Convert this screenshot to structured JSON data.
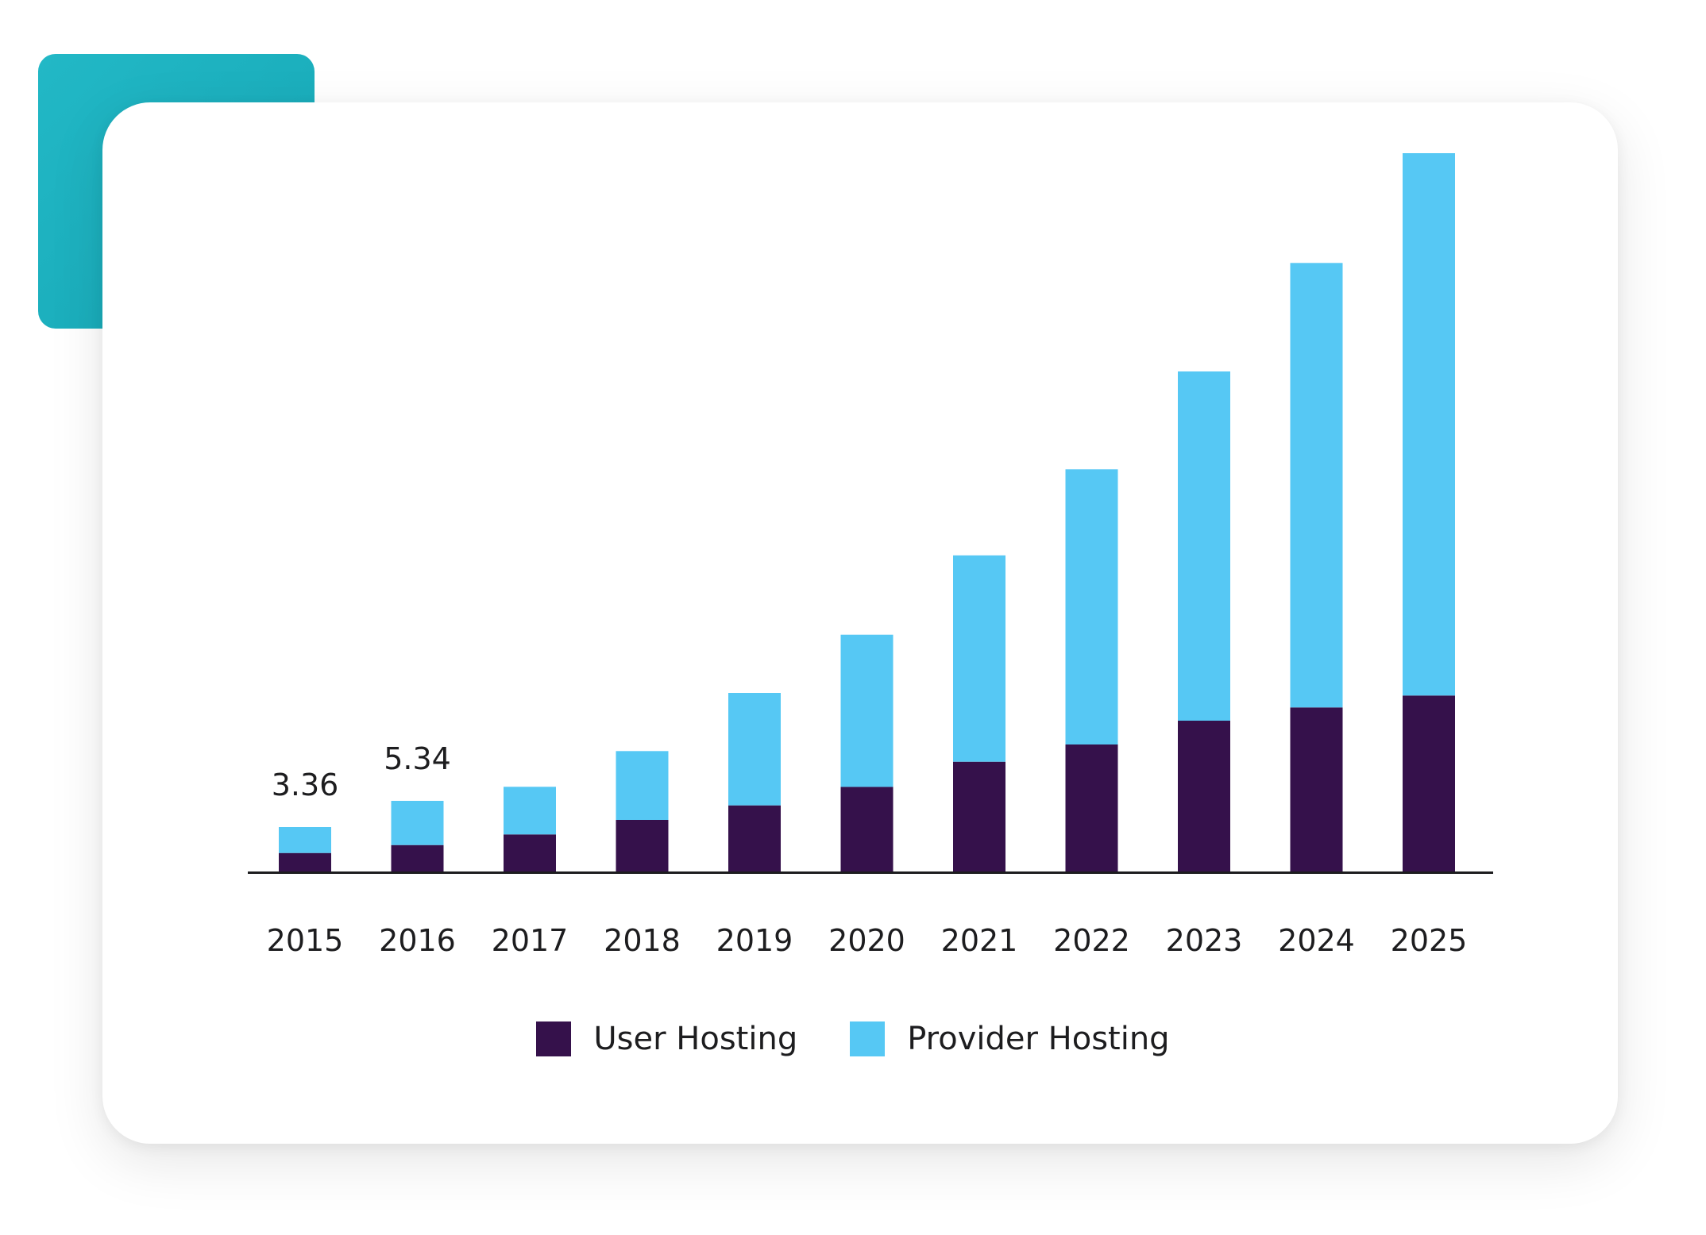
{
  "chart_data": {
    "type": "bar",
    "stacked": true,
    "categories": [
      "2015",
      "2016",
      "2017",
      "2018",
      "2019",
      "2020",
      "2021",
      "2022",
      "2023",
      "2024",
      "2025"
    ],
    "series": [
      {
        "name": "User Hosting",
        "color": "#35114b",
        "values": [
          1.4,
          2.0,
          2.8,
          3.9,
          5.0,
          6.4,
          8.3,
          9.6,
          11.4,
          12.4,
          13.3
        ]
      },
      {
        "name": "Provider Hosting",
        "color": "#56c8f4",
        "values": [
          1.96,
          3.34,
          3.6,
          5.2,
          8.5,
          11.5,
          15.6,
          20.8,
          26.4,
          33.6,
          41.0
        ]
      }
    ],
    "data_labels": [
      {
        "category": "2015",
        "text": "3.36"
      },
      {
        "category": "2016",
        "text": "5.34"
      }
    ],
    "title": "",
    "xlabel": "",
    "ylabel": "",
    "ylim": [
      0,
      60
    ],
    "grid": false,
    "show_y_axis": false,
    "legend_position": "bottom-center"
  },
  "colors": {
    "card_background": "#ffffff",
    "accent_tab": "#1cb1bf",
    "axis_line": "#1d1d1f",
    "text": "#1d1d1f"
  }
}
